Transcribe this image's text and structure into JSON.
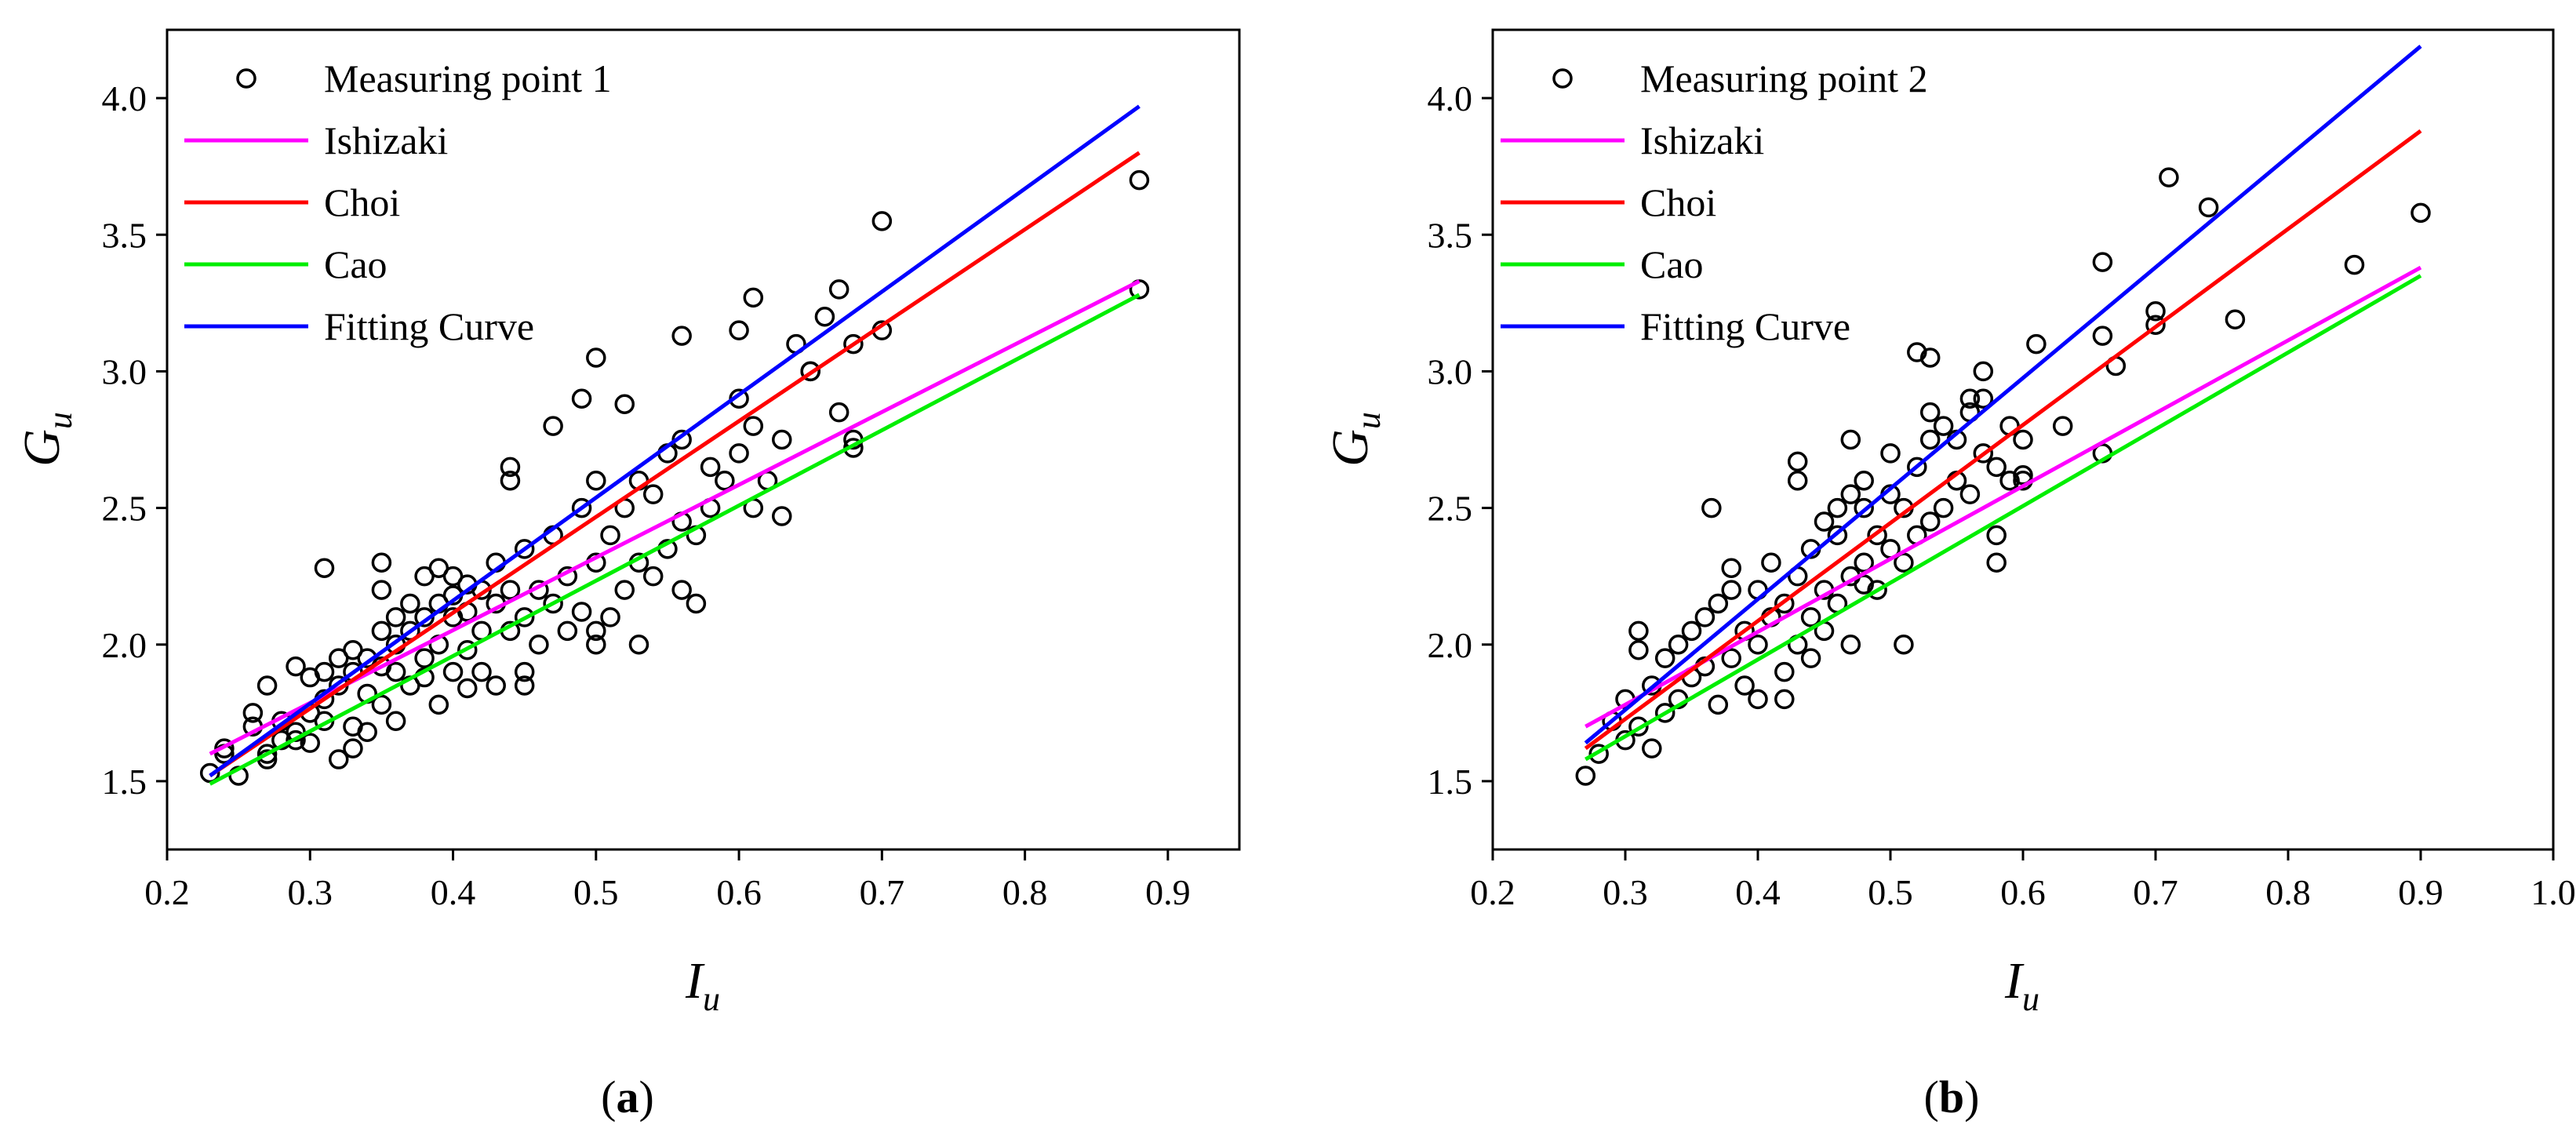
{
  "chart_data": [
    {
      "type": "scatter",
      "panel_label": "a",
      "xlabel_main": "I",
      "xlabel_sub": "u",
      "ylabel_main": "G",
      "ylabel_sub": "u",
      "xlim": [
        0.2,
        0.95
      ],
      "ylim": [
        1.25,
        4.25
      ],
      "xticks": [
        0.2,
        0.3,
        0.4,
        0.5,
        0.6,
        0.7,
        0.8,
        0.9
      ],
      "xtick_labels": [
        "0.2",
        "0.3",
        "0.4",
        "0.5",
        "0.6",
        "0.7",
        "0.8",
        "0.9"
      ],
      "yticks": [
        1.5,
        2.0,
        2.5,
        3.0,
        3.5,
        4.0
      ],
      "ytick_labels": [
        "1.5",
        "2.0",
        "2.5",
        "3.0",
        "3.5",
        "4.0"
      ],
      "legend_position": "top-left",
      "series": [
        {
          "name": "Measuring point 1",
          "kind": "points",
          "color": "#000000",
          "x": [
            0.23,
            0.24,
            0.25,
            0.26,
            0.26,
            0.27,
            0.27,
            0.28,
            0.28,
            0.29,
            0.29,
            0.3,
            0.3,
            0.3,
            0.31,
            0.31,
            0.31,
            0.32,
            0.32,
            0.32,
            0.33,
            0.33,
            0.33,
            0.34,
            0.34,
            0.34,
            0.35,
            0.35,
            0.35,
            0.35,
            0.36,
            0.36,
            0.36,
            0.37,
            0.37,
            0.37,
            0.38,
            0.38,
            0.38,
            0.38,
            0.39,
            0.39,
            0.39,
            0.39,
            0.4,
            0.4,
            0.4,
            0.4,
            0.41,
            0.41,
            0.41,
            0.42,
            0.42,
            0.42,
            0.43,
            0.43,
            0.43,
            0.44,
            0.44,
            0.44,
            0.45,
            0.45,
            0.45,
            0.46,
            0.46,
            0.47,
            0.47,
            0.48,
            0.48,
            0.49,
            0.49,
            0.5,
            0.5,
            0.5,
            0.51,
            0.51,
            0.52,
            0.52,
            0.53,
            0.53,
            0.54,
            0.54,
            0.55,
            0.55,
            0.56,
            0.56,
            0.56,
            0.57,
            0.58,
            0.58,
            0.59,
            0.6,
            0.6,
            0.61,
            0.61,
            0.62,
            0.63,
            0.64,
            0.65,
            0.66,
            0.67,
            0.68,
            0.68,
            0.7,
            0.88,
            0.88,
            0.31,
            0.35,
            0.44,
            0.47,
            0.49,
            0.5,
            0.52,
            0.56,
            0.6,
            0.61,
            0.65,
            0.67,
            0.7,
            0.24,
            0.27,
            0.29,
            0.33,
            0.36,
            0.41,
            0.45,
            0.5,
            0.53,
            0.57,
            0.63,
            0.68
          ],
          "y": [
            1.53,
            1.62,
            1.52,
            1.75,
            1.7,
            1.58,
            1.85,
            1.65,
            1.72,
            1.68,
            1.92,
            1.75,
            1.88,
            1.64,
            1.8,
            1.72,
            1.9,
            1.58,
            1.95,
            1.85,
            1.7,
            1.9,
            1.98,
            1.82,
            1.95,
            1.68,
            1.92,
            2.05,
            2.2,
            1.78,
            1.9,
            2.0,
            2.1,
            1.85,
            2.05,
            2.15,
            1.95,
            2.1,
            2.25,
            1.88,
            2.0,
            2.15,
            2.28,
            1.78,
            1.9,
            2.1,
            2.25,
            2.18,
            1.98,
            2.12,
            2.22,
            2.05,
            2.2,
            1.9,
            2.15,
            2.3,
            1.85,
            2.05,
            2.2,
            2.6,
            1.9,
            2.1,
            2.35,
            2.0,
            2.2,
            2.15,
            2.4,
            2.05,
            2.25,
            2.12,
            2.5,
            2.05,
            2.3,
            2.6,
            2.1,
            2.4,
            2.2,
            2.5,
            2.3,
            2.6,
            2.25,
            2.55,
            2.35,
            2.7,
            2.2,
            2.45,
            2.75,
            2.4,
            2.5,
            2.65,
            2.6,
            2.7,
            2.9,
            2.5,
            2.8,
            2.6,
            2.75,
            3.1,
            3.0,
            3.2,
            3.3,
            3.1,
            2.75,
            3.15,
            3.3,
            3.7,
            2.28,
            2.3,
            2.65,
            2.8,
            2.9,
            3.05,
            2.88,
            3.13,
            3.15,
            3.27,
            3.0,
            2.85,
            3.55,
            1.6,
            1.6,
            1.65,
            1.62,
            1.72,
            1.84,
            1.85,
            2.0,
            2.0,
            2.15,
            2.47,
            2.72
          ]
        },
        {
          "name": "Ishizaki",
          "kind": "line",
          "color": "#ff00ff",
          "x": [
            0.23,
            0.88
          ],
          "y": [
            1.6,
            3.33
          ]
        },
        {
          "name": "Choi",
          "kind": "line",
          "color": "#ff0000",
          "x": [
            0.23,
            0.88
          ],
          "y": [
            1.52,
            3.8
          ]
        },
        {
          "name": "Cao",
          "kind": "line",
          "color": "#00ee00",
          "x": [
            0.23,
            0.88
          ],
          "y": [
            1.49,
            3.28
          ]
        },
        {
          "name": "Fitting Curve",
          "kind": "line",
          "color": "#0000ff",
          "x": [
            0.23,
            0.88
          ],
          "y": [
            1.52,
            3.97
          ]
        }
      ]
    },
    {
      "type": "scatter",
      "panel_label": "b",
      "xlabel_main": "I",
      "xlabel_sub": "u",
      "ylabel_main": "G",
      "ylabel_sub": "u",
      "xlim": [
        0.2,
        1.0
      ],
      "ylim": [
        1.25,
        4.25
      ],
      "xticks": [
        0.2,
        0.3,
        0.4,
        0.5,
        0.6,
        0.7,
        0.8,
        0.9,
        1.0
      ],
      "xtick_labels": [
        "0.2",
        "0.3",
        "0.4",
        "0.5",
        "0.6",
        "0.7",
        "0.8",
        "0.9",
        "1.0"
      ],
      "yticks": [
        1.5,
        2.0,
        2.5,
        3.0,
        3.5,
        4.0
      ],
      "ytick_labels": [
        "1.5",
        "2.0",
        "2.5",
        "3.0",
        "3.5",
        "4.0"
      ],
      "legend_position": "top-left",
      "series": [
        {
          "name": "Measuring point 2",
          "kind": "points",
          "color": "#000000",
          "x": [
            0.27,
            0.28,
            0.29,
            0.3,
            0.3,
            0.31,
            0.31,
            0.32,
            0.32,
            0.33,
            0.33,
            0.34,
            0.34,
            0.35,
            0.35,
            0.36,
            0.36,
            0.37,
            0.37,
            0.38,
            0.38,
            0.39,
            0.39,
            0.4,
            0.4,
            0.4,
            0.41,
            0.41,
            0.42,
            0.42,
            0.43,
            0.43,
            0.43,
            0.44,
            0.44,
            0.44,
            0.45,
            0.45,
            0.45,
            0.46,
            0.46,
            0.46,
            0.47,
            0.47,
            0.47,
            0.48,
            0.48,
            0.48,
            0.49,
            0.49,
            0.5,
            0.5,
            0.5,
            0.51,
            0.51,
            0.52,
            0.52,
            0.53,
            0.53,
            0.53,
            0.54,
            0.54,
            0.55,
            0.55,
            0.56,
            0.56,
            0.57,
            0.57,
            0.58,
            0.58,
            0.59,
            0.59,
            0.6,
            0.6,
            0.61,
            0.63,
            0.66,
            0.66,
            0.67,
            0.7,
            0.71,
            0.74,
            0.76,
            0.85,
            0.9,
            0.365,
            0.43,
            0.47,
            0.52,
            0.56,
            0.6,
            0.66,
            0.7,
            0.53,
            0.57,
            0.58,
            0.31,
            0.38,
            0.42,
            0.48,
            0.51
          ],
          "y": [
            1.52,
            1.6,
            1.72,
            1.65,
            1.8,
            1.7,
            2.05,
            1.85,
            1.62,
            1.75,
            1.95,
            1.8,
            2.0,
            1.88,
            2.05,
            1.92,
            2.1,
            1.78,
            2.15,
            1.95,
            2.2,
            1.85,
            2.05,
            2.0,
            2.2,
            1.8,
            2.1,
            2.3,
            1.9,
            2.15,
            2.0,
            2.25,
            2.6,
            2.1,
            2.35,
            1.95,
            2.2,
            2.45,
            2.05,
            2.15,
            2.4,
            2.5,
            2.25,
            2.55,
            2.0,
            2.3,
            2.5,
            2.6,
            2.2,
            2.4,
            2.35,
            2.55,
            2.7,
            2.3,
            2.5,
            2.4,
            2.65,
            2.45,
            2.75,
            2.85,
            2.5,
            2.8,
            2.6,
            2.75,
            2.55,
            2.85,
            2.7,
            2.9,
            2.3,
            2.65,
            2.8,
            2.6,
            2.75,
            2.6,
            3.1,
            2.8,
            3.4,
            2.7,
            3.02,
            3.17,
            3.71,
            3.6,
            3.19,
            3.39,
            3.58,
            2.5,
            2.67,
            2.75,
            3.07,
            2.9,
            2.62,
            3.13,
            3.22,
            3.05,
            3.0,
            2.4,
            1.98,
            2.28,
            1.8,
            2.22,
            2.0
          ]
        },
        {
          "name": "Ishizaki",
          "kind": "line",
          "color": "#ff00ff",
          "x": [
            0.27,
            0.9
          ],
          "y": [
            1.7,
            3.38
          ]
        },
        {
          "name": "Choi",
          "kind": "line",
          "color": "#ff0000",
          "x": [
            0.27,
            0.9
          ],
          "y": [
            1.62,
            3.88
          ]
        },
        {
          "name": "Cao",
          "kind": "line",
          "color": "#00ee00",
          "x": [
            0.27,
            0.9
          ],
          "y": [
            1.58,
            3.35
          ]
        },
        {
          "name": "Fitting Curve",
          "kind": "line",
          "color": "#0000ff",
          "x": [
            0.27,
            0.9
          ],
          "y": [
            1.64,
            4.19
          ]
        }
      ]
    }
  ]
}
